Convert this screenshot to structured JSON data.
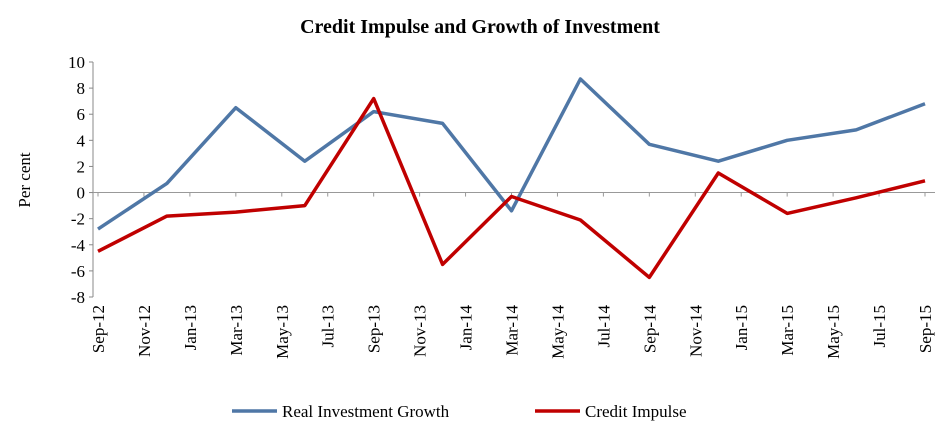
{
  "chart_data": {
    "type": "line",
    "title": "Credit Impulse and Growth of Investment",
    "y_label": "Per cent",
    "x": [
      "Sep-12",
      "Dec-12",
      "Mar-13",
      "Jun-13",
      "Sep-13",
      "Dec-13",
      "Mar-14",
      "Jun-14",
      "Sep-14",
      "Dec-14",
      "Mar-15",
      "Jun-15",
      "Sep-15"
    ],
    "xticks": [
      "Sep-12",
      "Nov-12",
      "Jan-13",
      "Mar-13",
      "May-13",
      "Jul-13",
      "Sep-13",
      "Nov-13",
      "Jan-14",
      "Mar-14",
      "May-14",
      "Jul-14",
      "Sep-14",
      "Nov-14",
      "Jan-15",
      "Mar-15",
      "May-15",
      "Jul-15",
      "Sep-15"
    ],
    "series": [
      {
        "name": "Real Investment Growth",
        "color": "#4f77a6",
        "values": [
          -2.8,
          0.7,
          6.5,
          2.4,
          6.2,
          5.3,
          -1.4,
          8.7,
          3.7,
          2.4,
          4.0,
          4.8,
          6.8
        ]
      },
      {
        "name": "Credit Impulse",
        "color": "#c00000",
        "values": [
          -4.5,
          -1.8,
          -1.5,
          -1.0,
          7.2,
          -5.5,
          -0.3,
          -2.1,
          -6.5,
          1.5,
          -1.6,
          -0.4,
          0.9
        ]
      }
    ],
    "ylim": [
      -8,
      10
    ],
    "yticks": [
      -8,
      -6,
      -4,
      -2,
      0,
      2,
      4,
      6,
      8,
      10
    ],
    "grid": false,
    "legend": "bottom"
  }
}
